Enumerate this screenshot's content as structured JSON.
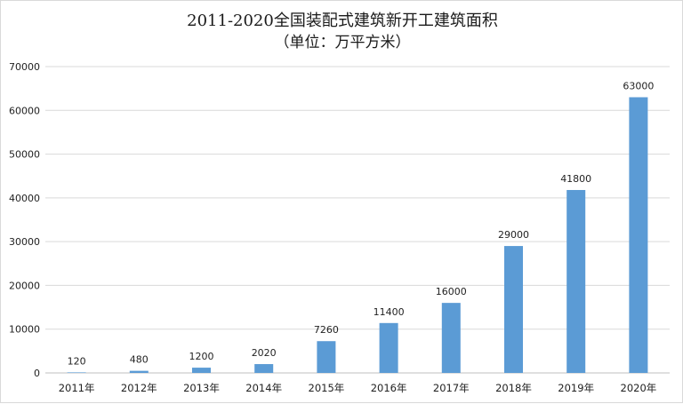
{
  "chart_data": {
    "type": "bar",
    "title": "2011-2020全国装配式建筑新开工建筑面积",
    "subtitle": "（单位：万平方米）",
    "categories": [
      "2011年",
      "2012年",
      "2013年",
      "2014年",
      "2015年",
      "2016年",
      "2017年",
      "2018年",
      "2019年",
      "2020年"
    ],
    "values": [
      120,
      480,
      1200,
      2020,
      7260,
      11400,
      16000,
      29000,
      41800,
      63000
    ],
    "data_labels": [
      "120",
      "480",
      "1200",
      "2020",
      "7260",
      "11400",
      "16000",
      "29000",
      "41800",
      "63000"
    ],
    "y_ticks": [
      "0",
      "10000",
      "20000",
      "30000",
      "40000",
      "50000",
      "60000",
      "70000"
    ],
    "ylim": [
      0,
      70000
    ],
    "grid": true,
    "legend": "none",
    "bar_color": "#5b9bd5"
  }
}
